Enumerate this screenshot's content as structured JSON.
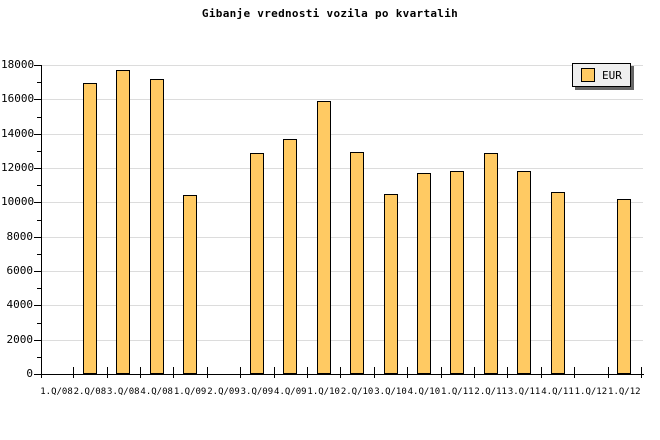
{
  "title": "Gibanje vrednosti vozila po kvartalih",
  "legend": {
    "label": "EUR"
  },
  "colors": {
    "background": "#FFFFFF",
    "bar_fill": "#FFCA63",
    "bar_border": "#000000",
    "grid": "#DCDCDC",
    "axis": "#000000",
    "text": "#000000",
    "legend_bg": "#EFEFEF",
    "legend_shadow": "#666666"
  },
  "chart_data": {
    "type": "bar",
    "title": "Gibanje vrednosti vozila po kvartalih",
    "series_name": "EUR",
    "categories": [
      "1.Q/08",
      "2.Q/08",
      "3.Q/08",
      "4.Q/08",
      "1.Q/09",
      "2.Q/09",
      "3.Q/09",
      "4.Q/09",
      "1.Q/10",
      "2.Q/10",
      "3.Q/10",
      "4.Q/10",
      "1.Q/11",
      "2.Q/11",
      "3.Q/11",
      "4.Q/11",
      "1.Q/12",
      "1.Q/12"
    ],
    "values": [
      null,
      16950,
      17700,
      17200,
      10450,
      null,
      12900,
      13700,
      15900,
      12950,
      10500,
      11700,
      11800,
      12900,
      11800,
      10600,
      null,
      10200
    ],
    "xlabel": "",
    "ylabel": "",
    "ylim": [
      0,
      18000
    ],
    "ytick_step": 2000,
    "ytick_minor_step": 1000,
    "ytick_labels": [
      "0",
      "2000",
      "4000",
      "6000",
      "8000",
      "10000",
      "12000",
      "14000",
      "16000",
      "18000"
    ],
    "grid": "horizontal",
    "legend_position": "top-right",
    "notes": "bars absent for 1.Q/08, 2.Q/09 and first 1.Q/12"
  }
}
